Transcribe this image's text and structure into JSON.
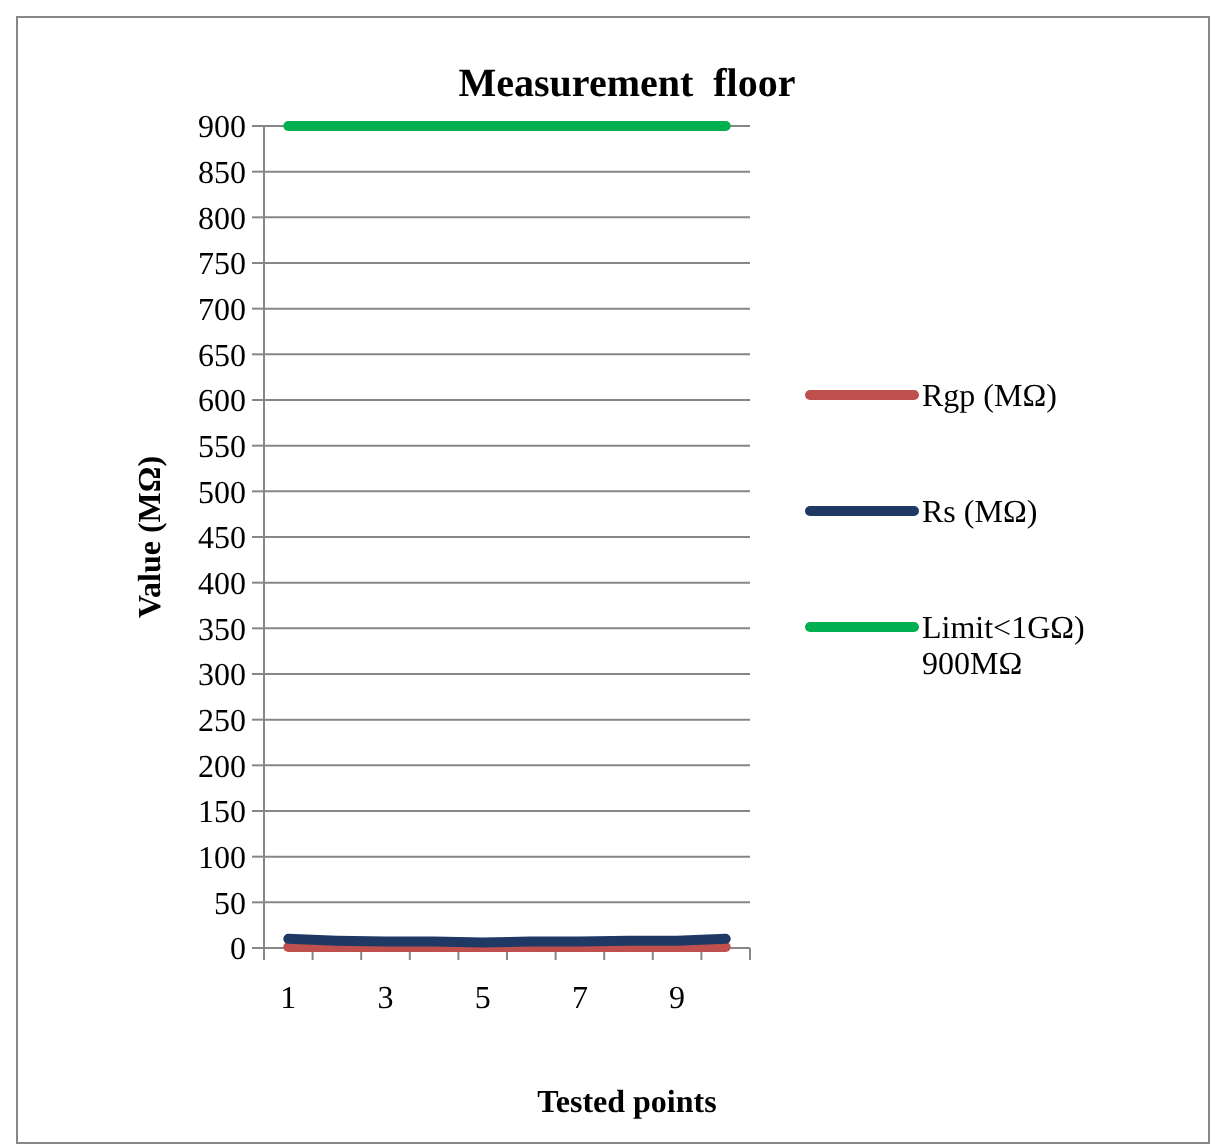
{
  "chart_data": {
    "type": "line",
    "title": "Measurement  floor",
    "xlabel": "Tested points",
    "ylabel": "Value (MΩ)",
    "categories": [
      "1",
      null,
      "3",
      null,
      "5",
      null,
      "7",
      null,
      "9",
      null
    ],
    "series": [
      {
        "name": "Rgp (MΩ)",
        "color": "#c0504d",
        "values": [
          1,
          1,
          1,
          1,
          1,
          1,
          1,
          1,
          1,
          1
        ]
      },
      {
        "name": "Rs (MΩ)",
        "color": "#1f3864",
        "values": [
          10,
          8,
          7,
          7,
          6,
          7,
          7,
          8,
          8,
          10
        ]
      },
      {
        "name": "Limit<1GΩ) 900MΩ",
        "color": "#00b050",
        "values": [
          900,
          900,
          900,
          900,
          900,
          900,
          900,
          900,
          900,
          900
        ]
      }
    ],
    "ylim": [
      0,
      900
    ],
    "yticks": [
      0,
      50,
      100,
      150,
      200,
      250,
      300,
      350,
      400,
      450,
      500,
      550,
      600,
      650,
      700,
      750,
      800,
      850,
      900
    ],
    "grid": "y",
    "legend": "right",
    "marker": "none",
    "line_style": "solid"
  }
}
